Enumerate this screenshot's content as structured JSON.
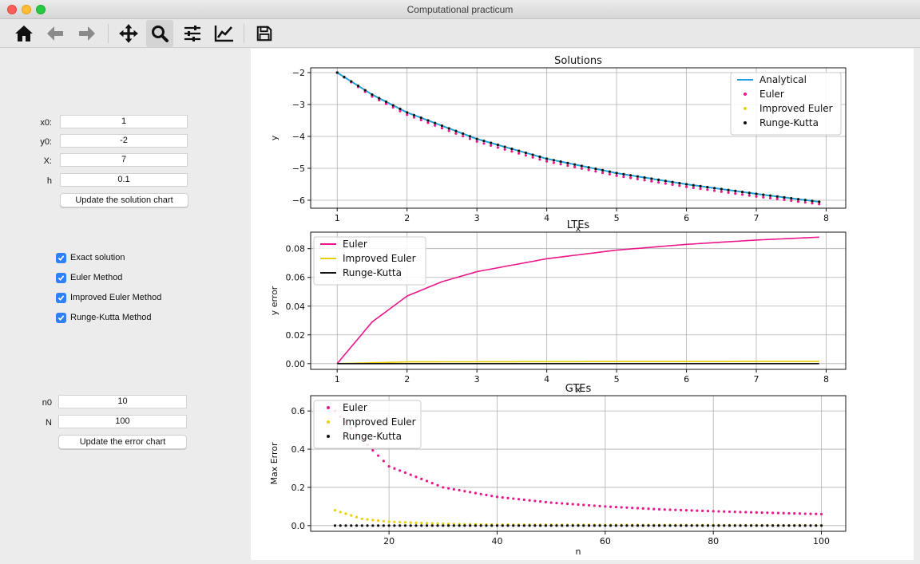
{
  "window": {
    "title": "Computational practicum"
  },
  "toolbar": {
    "buttons": [
      "home-icon",
      "back-arrow-icon",
      "forward-arrow-icon",
      "pan-icon",
      "zoom-icon",
      "subplots-icon",
      "edit-axis-icon",
      "save-icon"
    ],
    "active": "zoom-icon"
  },
  "inputs": {
    "x0_label": "x0:",
    "x0_value": "1",
    "y0_label": "y0:",
    "y0_value": "-2",
    "X_label": "X:",
    "X_value": "7",
    "h_label": "h",
    "h_value": "0.1",
    "update_solution_label": "Update the solution chart"
  },
  "checkboxes": [
    {
      "label": "Exact solution",
      "checked": true
    },
    {
      "label": "Euler Method",
      "checked": true
    },
    {
      "label": "Improved Euler Method",
      "checked": true
    },
    {
      "label": "Runge-Kutta Method",
      "checked": true
    }
  ],
  "errors": {
    "n0_label": "n0",
    "n0_value": "10",
    "N_label": "N",
    "N_value": "100",
    "update_error_label": "Update the error chart"
  },
  "colors": {
    "analytical": "#1f9ee0",
    "euler": "#ea168a",
    "improved": "#e8d10a",
    "rk": "#111111",
    "checkbox": "#2f7ff5"
  },
  "chart_data": [
    {
      "type": "line",
      "title": "Solutions",
      "xlabel": "x",
      "ylabel": "y",
      "xlim": [
        0.62,
        8.28
      ],
      "ylim": [
        -6.25,
        -1.85
      ],
      "xticks": [
        "1",
        "2",
        "3",
        "4",
        "5",
        "6",
        "7",
        "8"
      ],
      "yticks": [
        "-2",
        "-3",
        "-4",
        "-5",
        "-6"
      ],
      "legend": "top-right",
      "grid": true,
      "x_range": [
        1,
        7.9
      ],
      "series": [
        {
          "name": "Analytical",
          "style": "line",
          "points": [
            [
              1,
              -2
            ],
            [
              1.5,
              -2.69
            ],
            [
              2,
              -3.25
            ],
            [
              3,
              -4.08
            ],
            [
              4,
              -4.7
            ],
            [
              5,
              -5.15
            ],
            [
              6,
              -5.5
            ],
            [
              7,
              -5.8
            ],
            [
              7.9,
              -6.05
            ]
          ]
        },
        {
          "name": "Euler",
          "style": "dots",
          "points": [
            [
              1,
              -2
            ],
            [
              1.5,
              -2.75
            ],
            [
              2,
              -3.32
            ],
            [
              3,
              -4.16
            ],
            [
              4,
              -4.78
            ],
            [
              5,
              -5.23
            ],
            [
              6,
              -5.58
            ],
            [
              7,
              -5.88
            ],
            [
              7.9,
              -6.12
            ]
          ]
        },
        {
          "name": "Improved Euler",
          "style": "dots",
          "points": [
            [
              1,
              -2
            ],
            [
              1.5,
              -2.69
            ],
            [
              2,
              -3.25
            ],
            [
              3,
              -4.08
            ],
            [
              4,
              -4.7
            ],
            [
              5,
              -5.15
            ],
            [
              6,
              -5.5
            ],
            [
              7,
              -5.8
            ],
            [
              7.9,
              -6.05
            ]
          ]
        },
        {
          "name": "Runge-Kutta",
          "style": "dots",
          "points": [
            [
              1,
              -2
            ],
            [
              1.5,
              -2.69
            ],
            [
              2,
              -3.25
            ],
            [
              3,
              -4.08
            ],
            [
              4,
              -4.7
            ],
            [
              5,
              -5.15
            ],
            [
              6,
              -5.5
            ],
            [
              7,
              -5.8
            ],
            [
              7.9,
              -6.05
            ]
          ]
        }
      ]
    },
    {
      "type": "line",
      "title": "LTEs",
      "xlabel": "x",
      "ylabel": "y error",
      "xlim": [
        0.62,
        8.28
      ],
      "ylim": [
        -0.004,
        0.0915
      ],
      "xticks": [
        "1",
        "2",
        "3",
        "4",
        "5",
        "6",
        "7",
        "8"
      ],
      "yticks": [
        "0.00",
        "0.02",
        "0.04",
        "0.06",
        "0.08"
      ],
      "legend": "top-left",
      "grid": true,
      "series": [
        {
          "name": "Euler",
          "points": [
            [
              1,
              0
            ],
            [
              1.5,
              0.029
            ],
            [
              2,
              0.047
            ],
            [
              2.5,
              0.057
            ],
            [
              3,
              0.064
            ],
            [
              4,
              0.073
            ],
            [
              5,
              0.079
            ],
            [
              6,
              0.083
            ],
            [
              7,
              0.086
            ],
            [
              7.9,
              0.088
            ]
          ]
        },
        {
          "name": "Improved Euler",
          "points": [
            [
              1,
              0
            ],
            [
              2,
              0.0012
            ],
            [
              4,
              0.0014
            ],
            [
              7.9,
              0.0015
            ]
          ]
        },
        {
          "name": "Runge-Kutta",
          "points": [
            [
              1,
              0
            ],
            [
              7.9,
              0
            ]
          ]
        }
      ]
    },
    {
      "type": "scatter",
      "title": "GTEs",
      "xlabel": "n",
      "ylabel": "Max Error",
      "xlim": [
        5.5,
        104.5
      ],
      "ylim": [
        -0.03,
        0.68
      ],
      "xticks": [
        "20",
        "40",
        "60",
        "80",
        "100"
      ],
      "yticks": [
        "0.0",
        "0.2",
        "0.4",
        "0.6"
      ],
      "legend": "top-left",
      "grid": true,
      "n_range": [
        10,
        100
      ],
      "series": [
        {
          "name": "Euler",
          "points": [
            [
              10,
              0.6
            ],
            [
              15,
              0.45
            ],
            [
              20,
              0.31
            ],
            [
              30,
              0.2
            ],
            [
              40,
              0.15
            ],
            [
              50,
              0.12
            ],
            [
              60,
              0.1
            ],
            [
              70,
              0.085
            ],
            [
              80,
              0.075
            ],
            [
              90,
              0.067
            ],
            [
              100,
              0.06
            ]
          ]
        },
        {
          "name": "Improved Euler",
          "points": [
            [
              10,
              0.08
            ],
            [
              15,
              0.035
            ],
            [
              20,
              0.02
            ],
            [
              30,
              0.009
            ],
            [
              40,
              0.005
            ],
            [
              100,
              0.001
            ]
          ]
        },
        {
          "name": "Runge-Kutta",
          "points": [
            [
              10,
              0.0
            ],
            [
              100,
              0.0
            ]
          ]
        }
      ]
    }
  ]
}
